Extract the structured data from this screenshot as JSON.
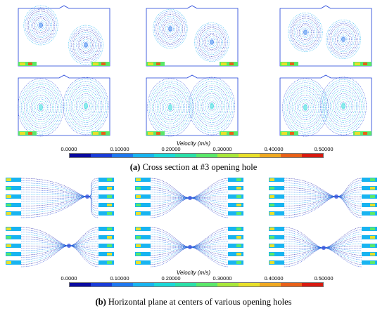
{
  "figure": {
    "colorbar_a": {
      "title": "Velocity (m/s)",
      "ticks": [
        "0.0000",
        "0.10000",
        "0.20000",
        "0.30000",
        "0.40000",
        "0.50000"
      ]
    },
    "caption_a": {
      "label": "(a)",
      "text": " Cross section at #3 opening hole"
    },
    "colorbar_b": {
      "title": "Velocity (m/s)",
      "ticks": [
        "0.0000",
        "0.10000",
        "0.20000",
        "0.30000",
        "0.40000",
        "0.50000"
      ]
    },
    "caption_b": {
      "label": "(b)",
      "text": " Horizontal plane at centers of various opening holes"
    },
    "colormap": [
      "#0a0aa0",
      "#1a3cd8",
      "#1e78f0",
      "#18b4f0",
      "#1ad8d8",
      "#2ae0a8",
      "#5ae86a",
      "#a8e83a",
      "#e8e02a",
      "#f0a820",
      "#e86018",
      "#d81a10"
    ]
  }
}
